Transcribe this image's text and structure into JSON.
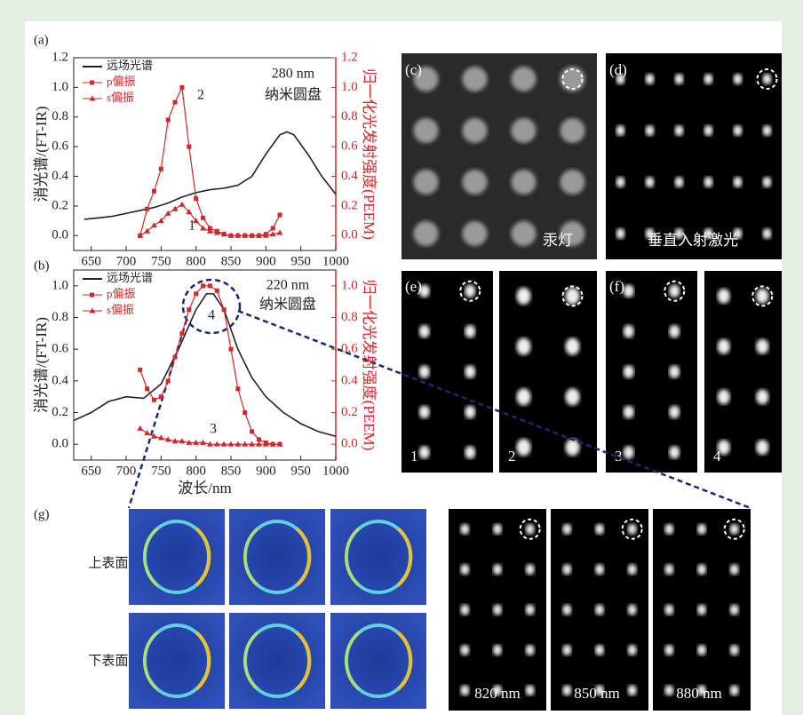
{
  "chart_data": [
    {
      "type": "line",
      "panel_label": "(a)",
      "y_label": "消光谱/(FT-IR)",
      "y2_label": "归一化光发射强度(PEEM)",
      "xlim": [
        625,
        1000
      ],
      "xticks": [
        650,
        700,
        750,
        800,
        850,
        900,
        950,
        1000
      ],
      "ylim": [
        -0.1,
        1.2
      ],
      "yticks": [
        {
          "value": 0,
          "label": "0.0"
        },
        0.2,
        0.4,
        0.6,
        0.8,
        {
          "value": 1,
          "label": "1.0"
        },
        1.2
      ],
      "y2lim": [
        -0.1,
        1.2
      ],
      "y2ticks": [
        {
          "value": 0,
          "label": "0.0"
        },
        0.2,
        0.4,
        0.6,
        0.8,
        {
          "value": 1,
          "label": "1.0"
        },
        1.2
      ],
      "annotations": [
        "280 nm",
        "纳米圆盘",
        "2",
        "1"
      ],
      "series": [
        {
          "name": "远场光谱",
          "color": "#222222",
          "marker": "none",
          "x": [
            640,
            660,
            680,
            700,
            720,
            740,
            760,
            780,
            800,
            820,
            840,
            860,
            880,
            900,
            920,
            930,
            940,
            960,
            980,
            1000
          ],
          "values": [
            0.11,
            0.12,
            0.13,
            0.15,
            0.17,
            0.19,
            0.22,
            0.26,
            0.29,
            0.31,
            0.32,
            0.34,
            0.4,
            0.55,
            0.68,
            0.7,
            0.68,
            0.55,
            0.4,
            0.28
          ]
        },
        {
          "name": "p偏振",
          "color": "#d0282c",
          "marker": "square",
          "axis": "y2",
          "x": [
            720,
            730,
            740,
            750,
            760,
            770,
            780,
            790,
            800,
            810,
            820,
            830,
            840,
            850,
            860,
            870,
            880,
            890,
            900,
            910,
            920
          ],
          "values": [
            0,
            0.18,
            0.3,
            0.45,
            0.78,
            0.9,
            1,
            0.6,
            0.25,
            0.12,
            0.05,
            0.03,
            0.01,
            0,
            0,
            0,
            0,
            0,
            0.01,
            0.05,
            0.14
          ]
        },
        {
          "name": "s偏振",
          "color": "#d0282c",
          "marker": "triangle",
          "axis": "y2",
          "x": [
            720,
            730,
            740,
            750,
            760,
            770,
            780,
            790,
            800,
            810,
            820,
            830,
            840,
            850,
            860,
            870,
            880,
            890,
            900,
            910,
            920
          ],
          "values": [
            0,
            0.03,
            0.07,
            0.1,
            0.15,
            0.18,
            0.21,
            0.16,
            0.1,
            0.05,
            0.03,
            0.02,
            0.01,
            0,
            0,
            0,
            0,
            0,
            0,
            0.01,
            0.02
          ]
        }
      ]
    },
    {
      "type": "line",
      "panel_label": "(b)",
      "x_label": "波长/nm",
      "y_label": "消光谱/(FT-IR)",
      "y2_label": "归一化光发射强度(PEEM)",
      "xlim": [
        625,
        1000
      ],
      "xticks": [
        650,
        700,
        750,
        800,
        850,
        900,
        950,
        1000
      ],
      "ylim": [
        -0.1,
        1.1
      ],
      "yticks": [
        {
          "value": 0,
          "label": "0.0"
        },
        0.2,
        0.4,
        0.6,
        0.8,
        {
          "value": 1,
          "label": "1.0"
        }
      ],
      "y2lim": [
        -0.1,
        1.1
      ],
      "y2ticks": [
        {
          "value": 0,
          "label": "0.0"
        },
        0.2,
        0.4,
        0.6,
        0.8,
        {
          "value": 1,
          "label": "1.0"
        }
      ],
      "annotations": [
        "220 nm",
        "纳米圆盘",
        "4",
        "3"
      ],
      "series": [
        {
          "name": "远场光谱",
          "color": "#222222",
          "marker": "none",
          "x": [
            625,
            650,
            675,
            700,
            725,
            750,
            775,
            800,
            815,
            825,
            840,
            860,
            880,
            900,
            925,
            950,
            975,
            1000
          ],
          "values": [
            0.15,
            0.2,
            0.27,
            0.3,
            0.29,
            0.38,
            0.6,
            0.85,
            0.95,
            0.95,
            0.85,
            0.6,
            0.42,
            0.3,
            0.2,
            0.13,
            0.08,
            0.05
          ]
        },
        {
          "name": "p偏振",
          "color": "#d0282c",
          "marker": "square",
          "axis": "y2",
          "x": [
            720,
            730,
            740,
            750,
            760,
            770,
            780,
            790,
            800,
            810,
            820,
            830,
            840,
            850,
            860,
            870,
            880,
            890,
            900,
            910,
            920
          ],
          "values": [
            0.47,
            0.35,
            0.28,
            0.3,
            0.4,
            0.55,
            0.7,
            0.85,
            0.95,
            1,
            1,
            0.97,
            0.85,
            0.6,
            0.35,
            0.2,
            0.08,
            0.03,
            0.01,
            0,
            0
          ]
        },
        {
          "name": "s偏振",
          "color": "#d0282c",
          "marker": "triangle",
          "axis": "y2",
          "x": [
            720,
            730,
            740,
            750,
            760,
            770,
            780,
            790,
            800,
            810,
            820,
            830,
            840,
            850,
            860,
            870,
            880,
            890,
            900,
            910,
            920
          ],
          "values": [
            0.1,
            0.07,
            0.05,
            0.04,
            0.03,
            0.02,
            0.02,
            0.01,
            0.01,
            0.01,
            0,
            0,
            0,
            0,
            0,
            0,
            0,
            0,
            0,
            0,
            0
          ]
        }
      ]
    }
  ],
  "panels": {
    "c": "(c)",
    "d": "(d)",
    "e": "(e)",
    "f": "(f)",
    "g": "(g)"
  },
  "captions": {
    "c": "汞灯",
    "d": "垂直入射激光",
    "e": [
      "1",
      "2"
    ],
    "f": [
      "3",
      "4"
    ],
    "g_rows": [
      "上表面",
      "下表面"
    ],
    "g_wavelengths": [
      "820 nm",
      "850 nm",
      "880 nm"
    ]
  }
}
